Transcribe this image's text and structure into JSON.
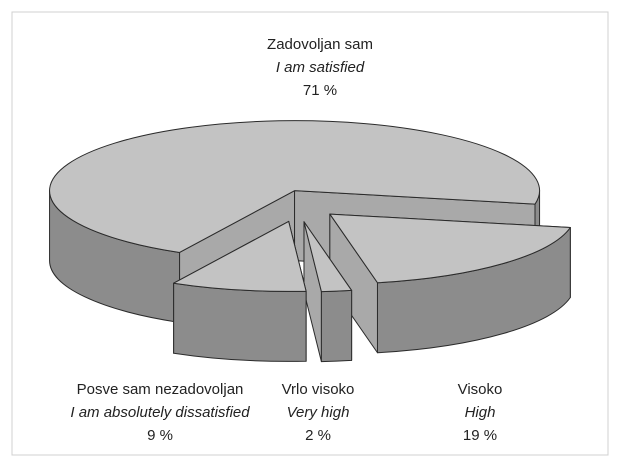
{
  "chart_data": {
    "type": "pie3d",
    "categories": [
      "Zadovoljan sam",
      "Visoko",
      "Vrlo visoko",
      "Posve sam nezadovoljan"
    ],
    "translations": [
      "I am satisfied",
      "High",
      "Very high",
      "I am absolutely dissatisfied"
    ],
    "values": [
      71,
      19,
      2,
      9
    ],
    "value_labels": [
      "71 %",
      "19 %",
      "2 %",
      "9 %"
    ],
    "colors": {
      "top": "#c3c3c3",
      "wall": "#8c8c8c",
      "face": "#a9a9a9",
      "stroke": "#2b2b2b"
    }
  }
}
